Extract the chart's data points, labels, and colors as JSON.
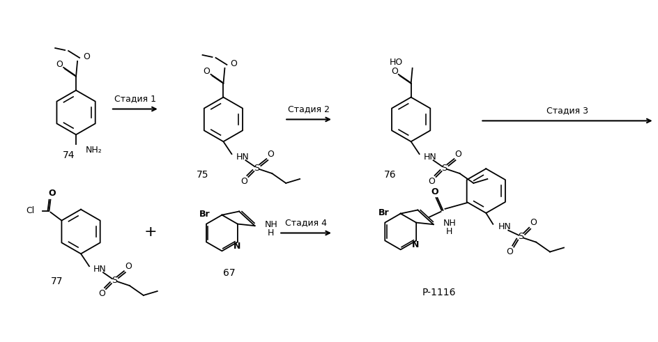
{
  "bg_color": "#ffffff",
  "line_color": "#000000",
  "figsize": [
    9.44,
    4.91
  ],
  "dpi": 100,
  "labels": {
    "74": "74",
    "75": "75",
    "76": "76",
    "77": "77",
    "67": "67",
    "p1116": "P-1116",
    "stage1": "Стадия 1",
    "stage2": "Стадия 2",
    "stage3": "Стадия 3",
    "stage4": "Стадия 4"
  }
}
